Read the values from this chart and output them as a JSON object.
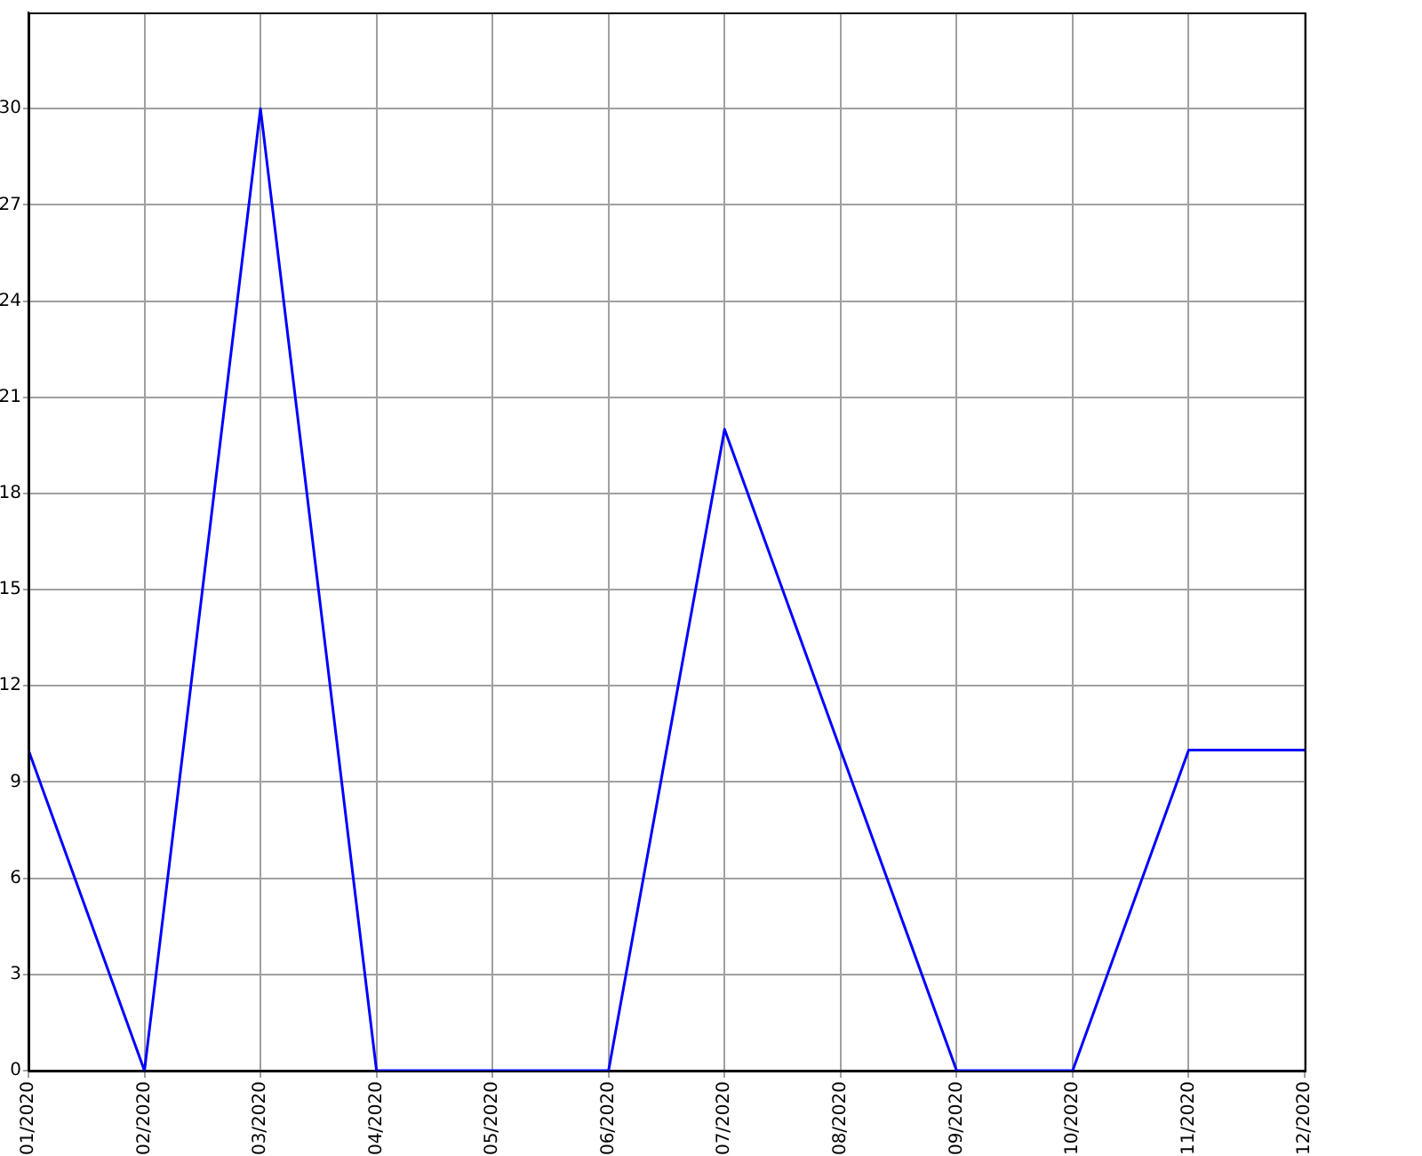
{
  "chart_data": {
    "type": "line",
    "categories": [
      "01/2020",
      "02/2020",
      "03/2020",
      "04/2020",
      "05/2020",
      "06/2020",
      "07/2020",
      "08/2020",
      "09/2020",
      "10/2020",
      "11/2020",
      "12/2020"
    ],
    "series": [
      {
        "color": "#0000ff",
        "values": [
          10,
          0,
          30,
          0,
          0,
          0,
          20,
          10,
          0,
          0,
          10,
          10
        ]
      }
    ],
    "ylim": [
      0,
      33
    ],
    "yticks": [
      0,
      3,
      6,
      9,
      12,
      15,
      18,
      21,
      24,
      27,
      30
    ],
    "grid": true,
    "legend": false,
    "marker": "none",
    "line_style": "solid"
  }
}
